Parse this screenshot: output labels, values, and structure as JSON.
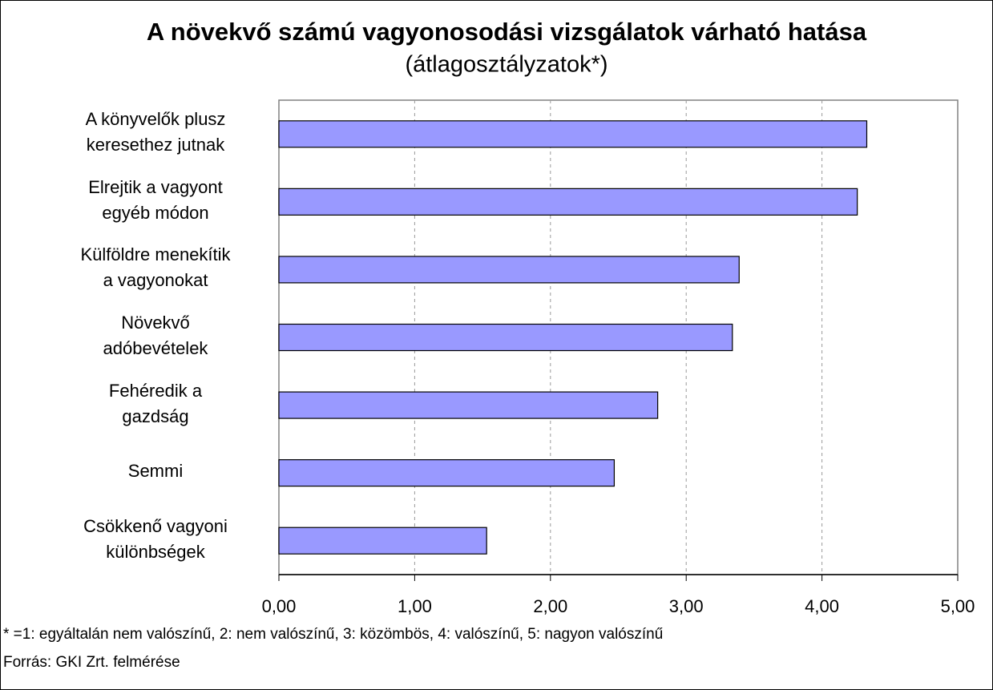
{
  "chart_data": {
    "type": "barh",
    "title": "A növekvő számú vagyonosodási vizsgálatok várható hatása",
    "subtitle": "(átlagosztályzatok*)",
    "categories": [
      "A könyvelők plusz\nkeresethez jutnak",
      "Elrejtik a vagyont\negyéb módon",
      "Külföldre menekítik\na vagyonokat",
      "Növekvő\nadóbevételek",
      "Fehéredik a\ngazdság",
      "Semmi",
      "Csökkenő vagyoni\nkülönbségek"
    ],
    "values": [
      4.33,
      4.26,
      3.39,
      3.34,
      2.79,
      2.47,
      1.53
    ],
    "color": "#9999ff",
    "xlim": [
      0,
      5
    ],
    "xticks": [
      {
        "value": 0,
        "label": "0,00"
      },
      {
        "value": 1,
        "label": "1,00"
      },
      {
        "value": 2,
        "label": "2,00"
      },
      {
        "value": 3,
        "label": "3,00"
      },
      {
        "value": 4,
        "label": "4,00"
      },
      {
        "value": 5,
        "label": "5,00"
      }
    ],
    "grid": true,
    "notes": [
      "* =1: egyáltalán nem valószínű, 2: nem valószínű, 3: közömbös, 4: valószínű, 5: nagyon valószínű",
      "Forrás: GKI Zrt. felmérése"
    ]
  }
}
